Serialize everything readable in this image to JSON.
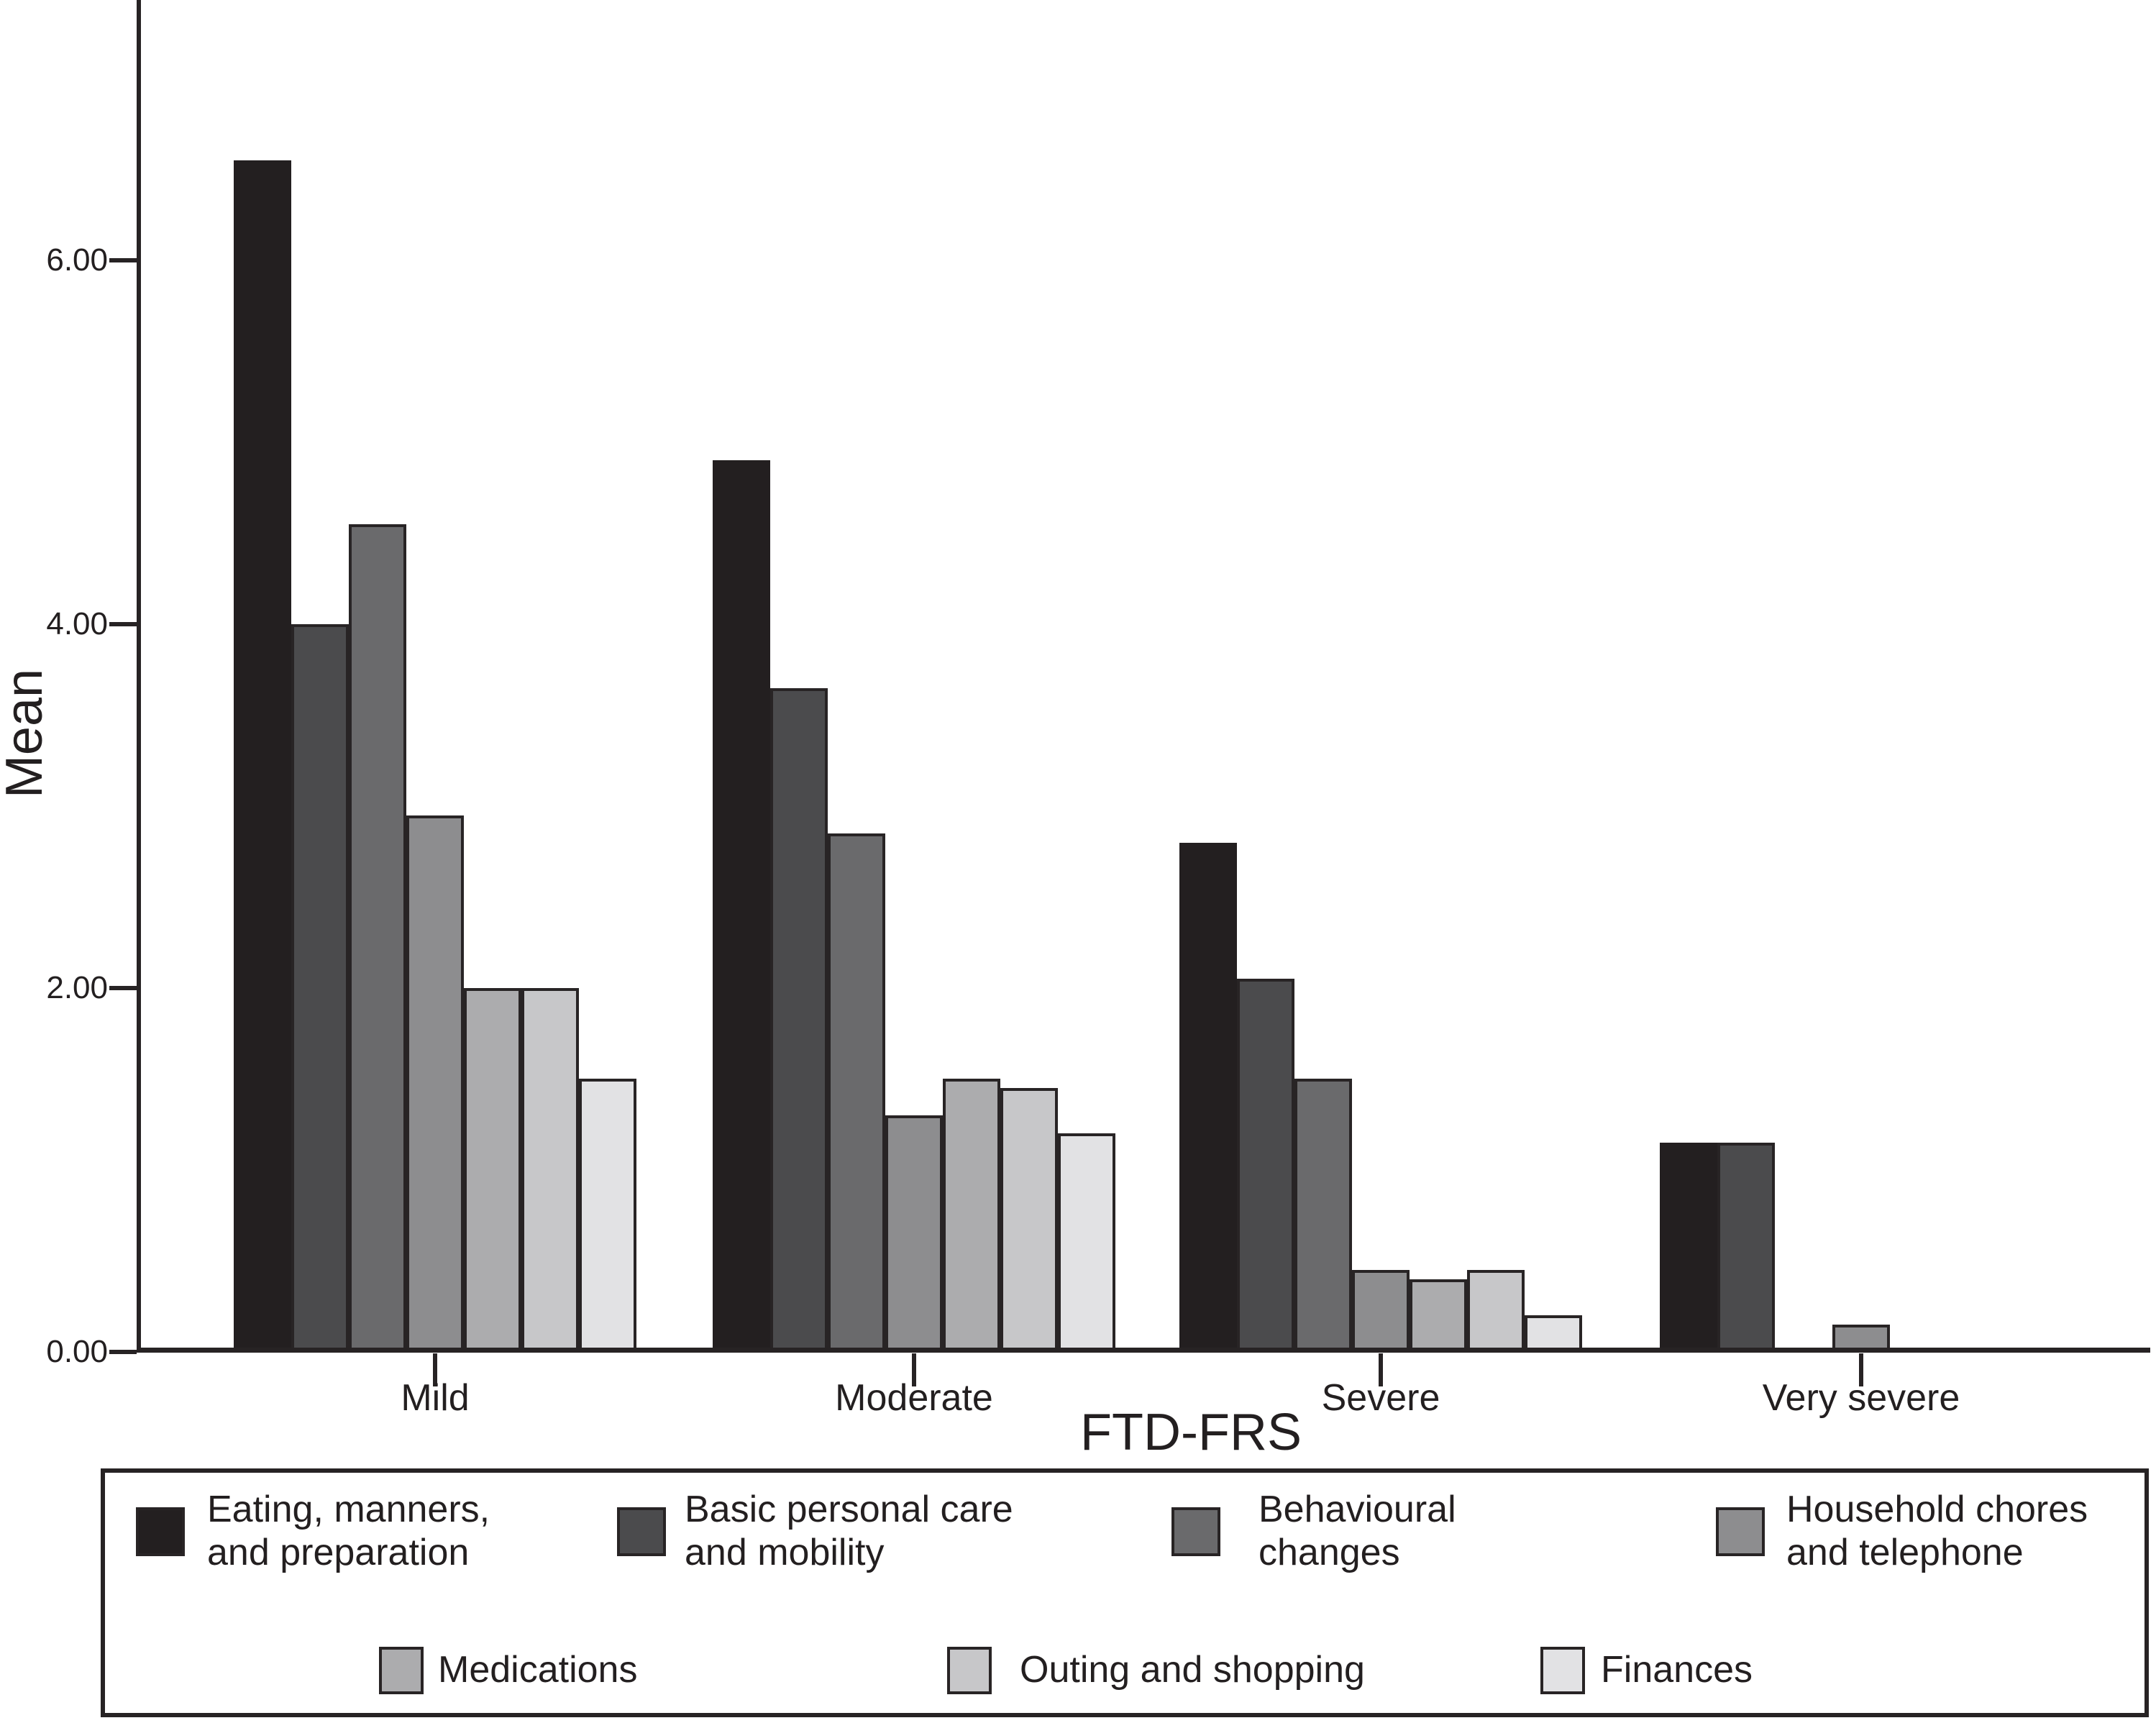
{
  "chart_data": {
    "type": "bar",
    "title": "",
    "xlabel": "FTD-FRS",
    "ylabel": "Mean",
    "categories": [
      "Mild",
      "Moderate",
      "Severe",
      "Very severe"
    ],
    "y_ticks": [
      "0.00",
      "2.00",
      "4.00",
      "6.00"
    ],
    "y_tick_values": [
      0,
      2,
      4,
      6
    ],
    "ylim": [
      0,
      7.4
    ],
    "grid": false,
    "legend_position": "bottom-box",
    "background_color": "#ffffff",
    "axis_color": "#272324",
    "series": [
      {
        "name": "Eating, manners, and preparation",
        "color": "#231f20",
        "values": [
          6.55,
          4.9,
          2.8,
          1.15
        ]
      },
      {
        "name": "Basic personal care and mobility",
        "color": "#4b4b4d",
        "values": [
          4.0,
          3.65,
          2.05,
          1.15
        ]
      },
      {
        "name": "Behavioural changes",
        "color": "#6a6a6c",
        "values": [
          4.55,
          2.85,
          1.5,
          0
        ]
      },
      {
        "name": "Household chores and telephone",
        "color": "#8d8d8f",
        "values": [
          2.95,
          1.3,
          0.45,
          0.15
        ]
      },
      {
        "name": "Medications",
        "color": "#acacae",
        "values": [
          2.0,
          1.5,
          0.4,
          0
        ]
      },
      {
        "name": "Outing and shopping",
        "color": "#c7c7c9",
        "values": [
          2.0,
          1.45,
          0.45,
          0
        ]
      },
      {
        "name": "Finances",
        "color": "#e2e2e4",
        "values": [
          1.5,
          1.2,
          0.2,
          0
        ]
      }
    ]
  }
}
